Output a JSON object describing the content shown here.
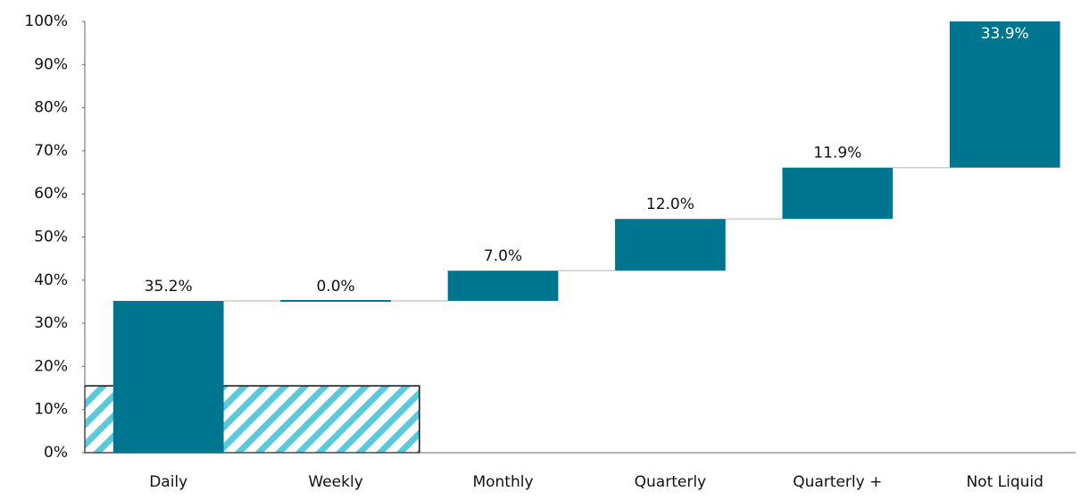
{
  "chart_data": {
    "type": "waterfall",
    "categories": [
      "Daily",
      "Weekly",
      "Monthly",
      "Quarterly",
      "Quarterly +",
      "Not Liquid"
    ],
    "values": [
      35.2,
      0.0,
      7.0,
      12.0,
      11.9,
      33.9
    ],
    "value_labels": [
      "35.2%",
      "0.0%",
      "7.0%",
      "12.0%",
      "11.9%",
      "33.9%"
    ],
    "color": "#00758f",
    "hatched_level": 15.5,
    "hatch_color": "#5bc8dc",
    "ylim": [
      0,
      100
    ],
    "yticks": [
      {
        "value": 0,
        "label": "0%"
      },
      {
        "value": 10,
        "label": "10%"
      },
      {
        "value": 20,
        "label": "20%"
      },
      {
        "value": 30,
        "label": "30%"
      },
      {
        "value": 40,
        "label": "40%"
      },
      {
        "value": 50,
        "label": "50%"
      },
      {
        "value": 60,
        "label": "60%"
      },
      {
        "value": 70,
        "label": "70%"
      },
      {
        "value": 80,
        "label": "80%"
      },
      {
        "value": 90,
        "label": "90%"
      },
      {
        "value": 100,
        "label": "100%"
      }
    ],
    "grid": false
  }
}
